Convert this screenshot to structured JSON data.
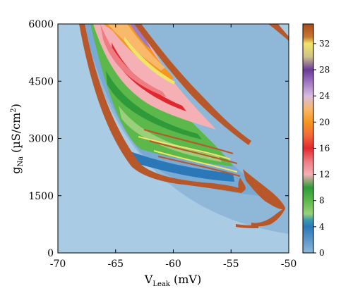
{
  "chart_data": {
    "type": "heatmap",
    "x_axis": {
      "label_main": "V",
      "label_sub": "Leak",
      "label_unit": " (mV)",
      "range": [
        -70,
        -50
      ],
      "ticks": [
        -70,
        -65,
        -60,
        -55,
        -50
      ],
      "tick_labels": [
        "-70",
        "-65",
        "-60",
        "-55",
        "-50"
      ]
    },
    "y_axis": {
      "label_main": "g",
      "label_sub": "Na",
      "label_unit_open": " (µS/cm",
      "label_unit_sup": "2",
      "label_unit_close": ")",
      "range": [
        0,
        6000
      ],
      "ticks": [
        0,
        1500,
        3000,
        4500,
        6000
      ],
      "tick_labels": [
        "0",
        "1500",
        "3000",
        "4500",
        "6000"
      ]
    },
    "colorbar": {
      "range": [
        0,
        35
      ],
      "ticks": [
        0,
        4,
        8,
        12,
        16,
        20,
        24,
        28,
        32
      ],
      "tick_labels": [
        "0",
        "4",
        "8",
        "12",
        "16",
        "20",
        "24",
        "28",
        "32"
      ],
      "colors": [
        {
          "v": 0,
          "c": "#8db8d8"
        },
        {
          "v": 2,
          "c": "#5a97c8"
        },
        {
          "v": 4,
          "c": "#2a78b8"
        },
        {
          "v": 5,
          "c": "#3a9aa8"
        },
        {
          "v": 6,
          "c": "#9ad07a"
        },
        {
          "v": 8,
          "c": "#5cb84a"
        },
        {
          "v": 10,
          "c": "#2e9a3a"
        },
        {
          "v": 12,
          "c": "#f4b0b4"
        },
        {
          "v": 14,
          "c": "#ee7c82"
        },
        {
          "v": 16,
          "c": "#e2282e"
        },
        {
          "v": 18,
          "c": "#f26a3a"
        },
        {
          "v": 20,
          "c": "#f5961e"
        },
        {
          "v": 22,
          "c": "#fab86a"
        },
        {
          "v": 24,
          "c": "#d6bce0"
        },
        {
          "v": 26,
          "c": "#a27ac0"
        },
        {
          "v": 28,
          "c": "#6a3a9a"
        },
        {
          "v": 30,
          "c": "#cdc48a"
        },
        {
          "v": 32,
          "c": "#f0e46a"
        },
        {
          "v": 33,
          "c": "#c87830"
        },
        {
          "v": 35,
          "c": "#a84a1a"
        }
      ]
    },
    "regions": [
      {
        "name": "background",
        "value": 0,
        "color": "#a9cbe3"
      },
      {
        "name": "outer-region",
        "value": 1,
        "color": "#8fb8d8"
      },
      {
        "name": "blue-region",
        "value": 3,
        "color": "#79aad3"
      },
      {
        "name": "boundary",
        "value": 35,
        "color": "#b8572a"
      }
    ],
    "grid": false,
    "legend": "colorbar-right"
  }
}
